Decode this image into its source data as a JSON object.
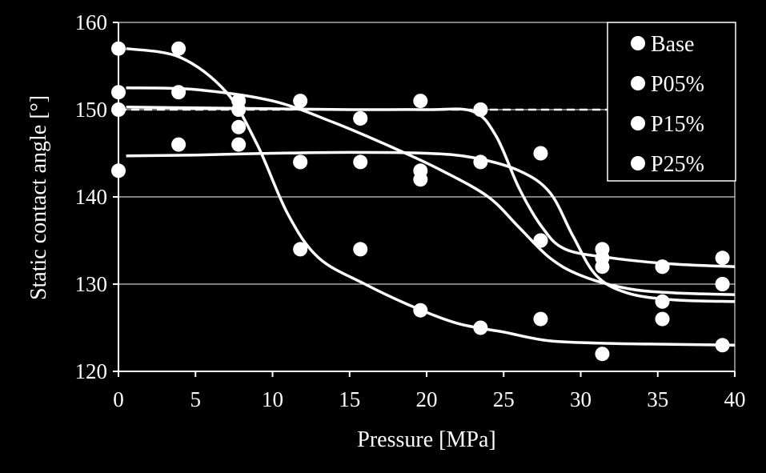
{
  "chart_data": {
    "type": "scatter",
    "title": "",
    "xlabel": "Pressure [MPa]",
    "ylabel": "Static contact angle [°]",
    "xlim": [
      0,
      40
    ],
    "ylim": [
      120,
      160
    ],
    "xticks": [
      0,
      5,
      10,
      15,
      20,
      25,
      30,
      35,
      40
    ],
    "yticks": [
      120,
      130,
      140,
      150,
      160
    ],
    "grid": "horizontal",
    "legend_position": "top-right",
    "colors": {
      "background": "#000000",
      "foreground": "#ffffff",
      "grid": "#ffffff"
    },
    "series": [
      {
        "name": "Base",
        "x": [
          0,
          3.9,
          7.8,
          11.8,
          15.7,
          19.6,
          23.5,
          27.4,
          31.4,
          35.3,
          39.2
        ],
        "y": [
          157,
          157,
          150,
          134,
          134,
          127,
          125,
          126,
          122,
          126,
          123
        ],
        "fit": [
          [
            0.5,
            157
          ],
          [
            4,
            156
          ],
          [
            7,
            152
          ],
          [
            9,
            146
          ],
          [
            11,
            138
          ],
          [
            13,
            133
          ],
          [
            16,
            130
          ],
          [
            19,
            127.5
          ],
          [
            22,
            125.5
          ],
          [
            25,
            124.5
          ],
          [
            28,
            123.5
          ],
          [
            32,
            123.2
          ],
          [
            36,
            123.1
          ],
          [
            40,
            123
          ]
        ]
      },
      {
        "name": "P05%",
        "x": [
          0,
          3.9,
          7.8,
          11.8,
          15.7,
          19.6,
          23.5,
          27.4,
          31.4,
          35.3,
          39.2
        ],
        "y": [
          152,
          152,
          148,
          151,
          149,
          143,
          144,
          135,
          133,
          128,
          130
        ],
        "fit": [
          [
            0.5,
            152.5
          ],
          [
            5,
            152.3
          ],
          [
            10,
            151
          ],
          [
            14,
            148.5
          ],
          [
            18,
            145.5
          ],
          [
            21,
            143
          ],
          [
            24,
            140
          ],
          [
            26,
            136.5
          ],
          [
            28,
            133
          ],
          [
            30,
            131
          ],
          [
            33,
            129.5
          ],
          [
            36,
            129
          ],
          [
            40,
            128.8
          ]
        ]
      },
      {
        "name": "P15%",
        "x": [
          0,
          3.9,
          7.8,
          11.8,
          15.7,
          19.6,
          23.5,
          27.4,
          31.4,
          35.3,
          39.2
        ],
        "y": [
          150,
          146,
          146,
          144,
          144,
          142,
          150,
          145,
          134,
          132,
          133
        ],
        "fit": [
          [
            0.5,
            150.3
          ],
          [
            5,
            150.2
          ],
          [
            10,
            150.1
          ],
          [
            15,
            150
          ],
          [
            20,
            150
          ],
          [
            23,
            149.8
          ],
          [
            24.5,
            147
          ],
          [
            26,
            141
          ],
          [
            27.5,
            136.5
          ],
          [
            29,
            134
          ],
          [
            32,
            133
          ],
          [
            36,
            132.3
          ],
          [
            40,
            132
          ]
        ]
      },
      {
        "name": "P25%",
        "x": [
          0,
          7.8,
          11.8,
          15.7,
          19.6,
          23.5,
          27.4,
          31.4,
          35.3,
          39.2
        ],
        "y": [
          143,
          151,
          144,
          149,
          151,
          150,
          135,
          132,
          132,
          130
        ],
        "fit": [
          [
            0.5,
            144.7
          ],
          [
            5,
            144.8
          ],
          [
            10,
            145
          ],
          [
            15,
            145.1
          ],
          [
            20,
            145
          ],
          [
            23,
            144.5
          ],
          [
            26,
            143
          ],
          [
            28,
            140.5
          ],
          [
            29.5,
            135.5
          ],
          [
            31,
            131
          ],
          [
            33,
            129
          ],
          [
            36,
            128.2
          ],
          [
            40,
            128
          ]
        ]
      }
    ],
    "reference_line": {
      "style": "dashed",
      "y": 150
    }
  }
}
